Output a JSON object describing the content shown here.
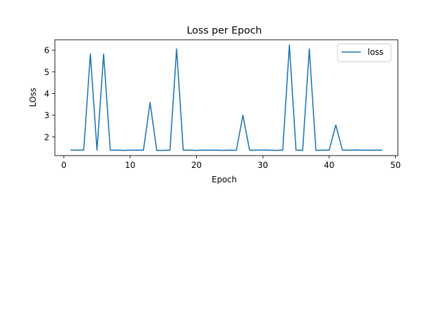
{
  "chart_data": {
    "type": "line",
    "title": "Loss per Epoch",
    "xlabel": "Epoch",
    "ylabel": "LOss",
    "xlim": [
      -1.35,
      50.35
    ],
    "ylim": [
      1.14,
      6.48
    ],
    "xticks": [
      0,
      10,
      20,
      30,
      40,
      50
    ],
    "yticks": [
      2,
      3,
      4,
      5,
      6
    ],
    "grid": false,
    "legend_position": "top-right",
    "colors": {
      "loss": "#1f77b4"
    },
    "x": [
      1,
      2,
      3,
      4,
      5,
      6,
      7,
      8,
      9,
      10,
      11,
      12,
      13,
      14,
      15,
      16,
      17,
      18,
      19,
      20,
      21,
      22,
      23,
      24,
      25,
      26,
      27,
      28,
      29,
      30,
      31,
      32,
      33,
      34,
      35,
      36,
      37,
      38,
      39,
      40,
      41,
      42,
      43,
      44,
      45,
      46,
      47,
      48
    ],
    "series": [
      {
        "name": "loss",
        "values": [
          1.39,
          1.39,
          1.4,
          5.83,
          1.39,
          5.82,
          1.39,
          1.39,
          1.38,
          1.39,
          1.39,
          1.39,
          3.59,
          1.38,
          1.38,
          1.39,
          6.06,
          1.39,
          1.39,
          1.38,
          1.39,
          1.39,
          1.39,
          1.38,
          1.39,
          1.38,
          3.0,
          1.39,
          1.39,
          1.4,
          1.39,
          1.38,
          1.39,
          6.24,
          1.39,
          1.38,
          6.06,
          1.38,
          1.39,
          1.39,
          2.55,
          1.39,
          1.39,
          1.4,
          1.39,
          1.39,
          1.39,
          1.39
        ]
      }
    ]
  }
}
